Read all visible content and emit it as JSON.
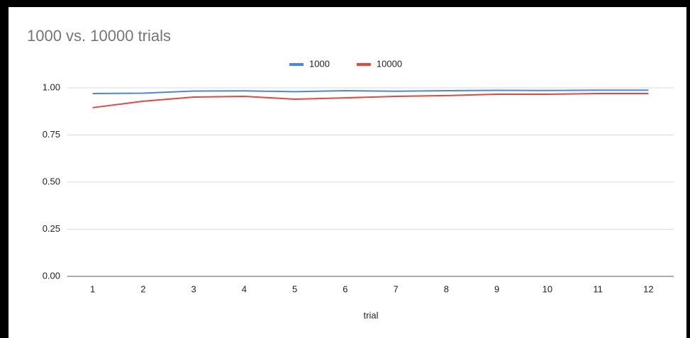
{
  "chart_data": {
    "type": "line",
    "title": "1000 vs. 10000 trials",
    "x_label": "trial",
    "categories": [
      "1",
      "2",
      "3",
      "4",
      "5",
      "6",
      "7",
      "8",
      "9",
      "10",
      "11",
      "12"
    ],
    "series": [
      {
        "name": "1000",
        "color": "#4a86e8",
        "values": [
          0.97,
          0.972,
          0.983,
          0.984,
          0.98,
          0.985,
          0.982,
          0.985,
          0.987,
          0.986,
          0.988,
          0.988
        ]
      },
      {
        "name": "10000",
        "color": "#e8453c",
        "values": [
          0.895,
          0.929,
          0.951,
          0.955,
          0.94,
          0.947,
          0.955,
          0.959,
          0.966,
          0.966,
          0.97,
          0.97
        ]
      }
    ],
    "ylim": [
      0,
      1
    ],
    "yticks": [
      {
        "value": 0,
        "label": "0.00"
      },
      {
        "value": 0.25,
        "label": "0.25"
      },
      {
        "value": 0.5,
        "label": "0.50"
      },
      {
        "value": 0.75,
        "label": "0.75"
      },
      {
        "value": 1,
        "label": "1.00"
      }
    ],
    "grid": true,
    "legend": "top"
  }
}
